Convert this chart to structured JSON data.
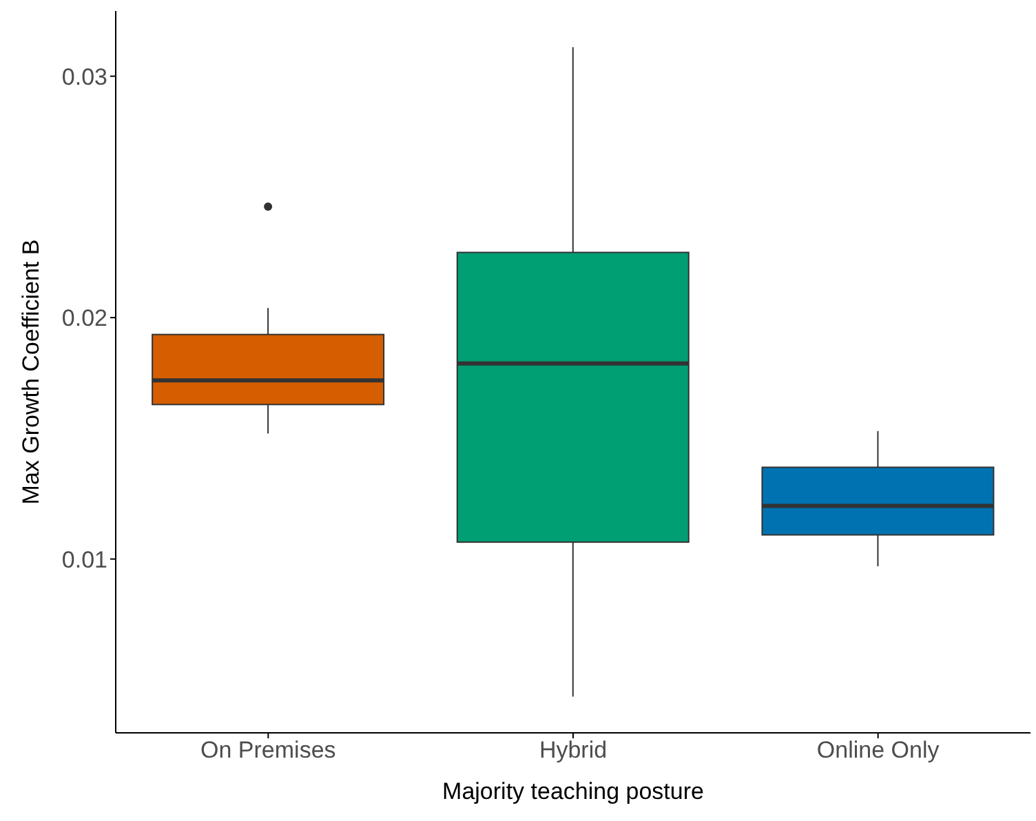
{
  "chart_data": {
    "type": "box",
    "xlabel": "Majority teaching posture",
    "ylabel": "Max Growth Coefficient B",
    "categories": [
      "On Premises",
      "Hybrid",
      "Online Only"
    ],
    "colors": [
      "#d55e00",
      "#009e73",
      "#0072b2"
    ],
    "boxes": [
      {
        "low": 0.0152,
        "q1": 0.0164,
        "median": 0.0174,
        "q3": 0.0193,
        "high": 0.0204,
        "outliers": [
          0.0246
        ]
      },
      {
        "low": 0.0043,
        "q1": 0.0107,
        "median": 0.0181,
        "q3": 0.0227,
        "high": 0.0312
      },
      {
        "low": 0.0097,
        "q1": 0.011,
        "median": 0.0122,
        "q3": 0.0138,
        "high": 0.0153
      }
    ],
    "ylim": [
      0.0028,
      0.0327
    ],
    "yticks": [
      0.01,
      0.02,
      0.03
    ],
    "grid": false
  }
}
